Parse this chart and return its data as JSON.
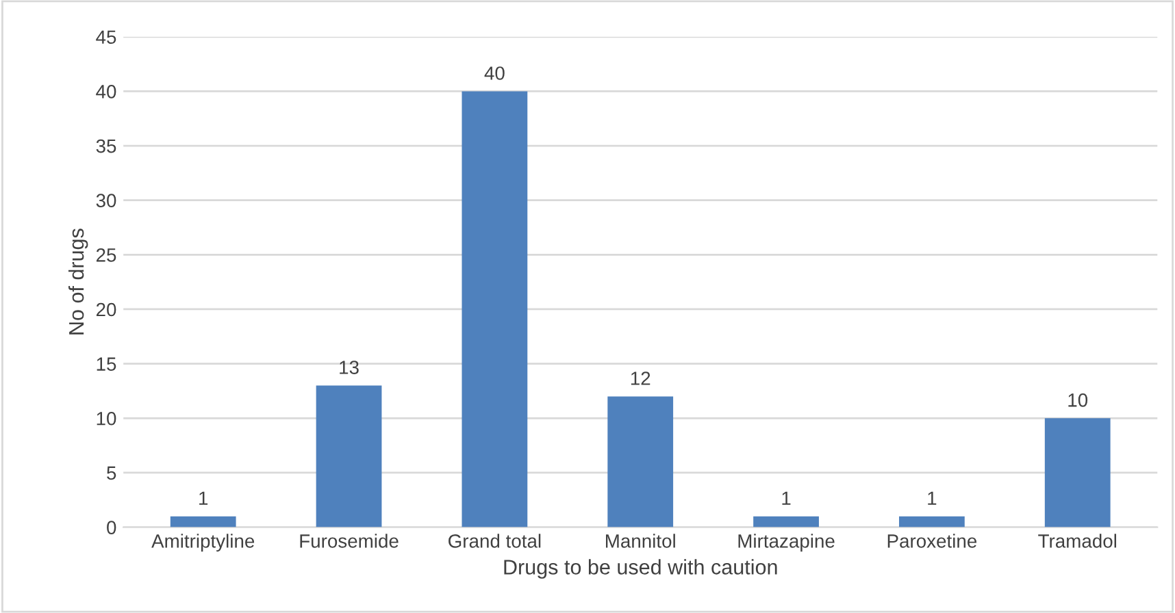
{
  "chart_data": {
    "type": "bar",
    "xlabel": "Drugs to be used with caution",
    "ylabel": "No of drugs",
    "categories": [
      "Amitriptyline",
      "Furosemide",
      "Grand total",
      "Mannitol",
      "Mirtazapine",
      "Paroxetine",
      "Tramadol"
    ],
    "values": [
      1,
      13,
      40,
      12,
      1,
      1,
      10
    ],
    "color": "#4f81bd",
    "ylim": [
      0,
      45
    ],
    "yticks": [
      0,
      5,
      10,
      15,
      20,
      25,
      30,
      35,
      40,
      45
    ],
    "grid": "y",
    "data_labels": true
  }
}
